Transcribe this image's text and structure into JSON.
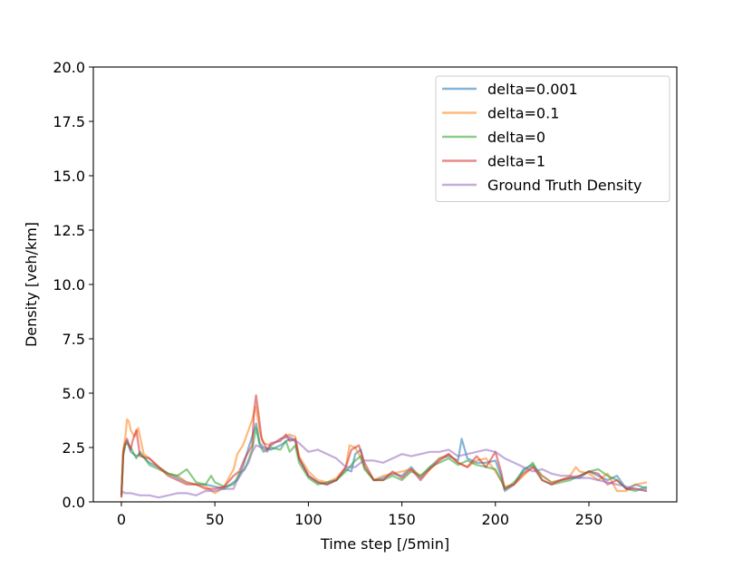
{
  "chart_data": {
    "type": "line",
    "title": "",
    "xlabel": "Time step [/5min]",
    "ylabel": "Density [veh/km]",
    "xlim": [
      -15,
      297
    ],
    "ylim": [
      0,
      20
    ],
    "xticks": [
      0,
      50,
      100,
      150,
      200,
      250
    ],
    "xtick_labels": [
      "0",
      "50",
      "100",
      "150",
      "200",
      "250"
    ],
    "yticks": [
      0,
      2.5,
      5,
      7.5,
      10,
      12.5,
      15,
      17.5,
      20
    ],
    "ytick_labels": [
      "0.0",
      "2.5",
      "5.0",
      "7.5",
      "10.0",
      "12.5",
      "15.0",
      "17.5",
      "20.0"
    ],
    "grid": false,
    "legend_position": "top-right",
    "series": [
      {
        "name": "delta=0.001",
        "color": "#1f77b4",
        "x": [
          0,
          1,
          2,
          3,
          5,
          8,
          10,
          15,
          20,
          25,
          30,
          35,
          40,
          45,
          50,
          55,
          60,
          62,
          65,
          68,
          70,
          72,
          74,
          76,
          80,
          85,
          90,
          93,
          95,
          100,
          105,
          110,
          115,
          120,
          123,
          125,
          128,
          130,
          135,
          140,
          145,
          150,
          155,
          160,
          165,
          170,
          175,
          180,
          182,
          185,
          190,
          195,
          200,
          203,
          205,
          210,
          215,
          220,
          225,
          230,
          235,
          240,
          245,
          250,
          255,
          260,
          265,
          270,
          275,
          281
        ],
        "y": [
          0.3,
          2.2,
          2.6,
          2.8,
          2.3,
          2.1,
          2.2,
          1.8,
          1.6,
          1.3,
          1.1,
          0.9,
          0.8,
          0.8,
          0.7,
          0.6,
          0.9,
          1.0,
          1.6,
          2.5,
          3.0,
          3.6,
          2.7,
          2.5,
          2.4,
          2.6,
          2.9,
          2.8,
          2.0,
          1.2,
          0.9,
          0.8,
          1.0,
          1.5,
          1.4,
          2.2,
          2.4,
          1.6,
          1.0,
          1.1,
          1.3,
          1.2,
          1.6,
          1.1,
          1.6,
          2.0,
          2.1,
          1.9,
          2.9,
          2.0,
          1.8,
          1.8,
          1.9,
          1.2,
          0.5,
          0.8,
          1.5,
          1.7,
          1.2,
          0.9,
          1.0,
          1.1,
          1.1,
          1.4,
          1.2,
          1.0,
          1.2,
          0.6,
          0.8,
          0.6
        ]
      },
      {
        "name": "delta=0.1",
        "color": "#ff7f0e",
        "x": [
          0,
          1,
          2,
          3,
          4,
          5,
          7,
          9,
          12,
          15,
          20,
          25,
          30,
          35,
          40,
          45,
          50,
          55,
          58,
          60,
          62,
          65,
          68,
          70,
          72,
          74,
          76,
          80,
          85,
          90,
          93,
          95,
          100,
          105,
          110,
          115,
          120,
          122,
          125,
          127,
          130,
          135,
          140,
          145,
          150,
          155,
          160,
          165,
          170,
          175,
          180,
          185,
          190,
          195,
          200,
          205,
          210,
          215,
          220,
          225,
          230,
          235,
          240,
          243,
          245,
          250,
          255,
          260,
          265,
          270,
          275,
          281
        ],
        "y": [
          0.2,
          2.4,
          2.9,
          3.8,
          3.7,
          3.3,
          3.0,
          3.4,
          2.2,
          2.0,
          1.6,
          1.3,
          1.2,
          0.9,
          0.8,
          0.7,
          0.4,
          0.7,
          1.2,
          1.5,
          2.2,
          2.6,
          3.3,
          3.8,
          4.4,
          3.2,
          2.7,
          2.6,
          2.9,
          3.1,
          3.0,
          2.1,
          1.4,
          1.0,
          0.9,
          1.1,
          1.6,
          2.6,
          2.5,
          2.2,
          1.6,
          1.0,
          1.2,
          1.3,
          1.4,
          1.5,
          1.2,
          1.5,
          2.0,
          2.2,
          1.8,
          1.6,
          1.9,
          2.0,
          1.4,
          0.7,
          0.8,
          1.2,
          1.6,
          1.2,
          0.9,
          1.0,
          1.2,
          1.6,
          1.4,
          1.3,
          1.0,
          1.3,
          0.5,
          0.5,
          0.8,
          0.9
        ]
      },
      {
        "name": "delta=0",
        "color": "#2ca02c",
        "x": [
          0,
          1,
          2,
          3,
          5,
          8,
          10,
          15,
          20,
          25,
          30,
          35,
          40,
          45,
          48,
          50,
          55,
          60,
          63,
          66,
          70,
          72,
          74,
          76,
          80,
          85,
          88,
          90,
          93,
          95,
          100,
          105,
          110,
          115,
          120,
          125,
          128,
          130,
          135,
          140,
          145,
          150,
          155,
          160,
          165,
          170,
          175,
          180,
          185,
          190,
          195,
          200,
          203,
          205,
          210,
          215,
          220,
          225,
          230,
          235,
          240,
          245,
          250,
          255,
          260,
          265,
          270,
          275,
          281
        ],
        "y": [
          0.3,
          2.1,
          2.6,
          2.7,
          2.5,
          2.0,
          2.3,
          1.7,
          1.5,
          1.3,
          1.2,
          1.5,
          0.9,
          0.8,
          1.2,
          0.9,
          0.7,
          0.8,
          1.3,
          1.5,
          2.4,
          3.4,
          2.6,
          2.3,
          2.5,
          2.4,
          2.8,
          2.3,
          2.6,
          1.8,
          1.1,
          0.8,
          0.9,
          1.0,
          1.4,
          1.9,
          2.1,
          1.5,
          1.0,
          1.0,
          1.2,
          1.0,
          1.4,
          1.2,
          1.6,
          1.8,
          2.0,
          1.7,
          1.9,
          1.7,
          1.6,
          1.5,
          1.0,
          0.6,
          0.9,
          1.4,
          1.8,
          1.0,
          0.8,
          0.9,
          1.0,
          1.2,
          1.4,
          1.5,
          1.2,
          1.0,
          0.6,
          0.5,
          0.7
        ]
      },
      {
        "name": "delta=1",
        "color": "#d62728",
        "x": [
          0,
          1,
          2,
          3,
          5,
          6,
          8,
          10,
          15,
          20,
          25,
          30,
          35,
          40,
          45,
          50,
          55,
          60,
          63,
          66,
          70,
          71,
          72,
          73,
          75,
          78,
          80,
          85,
          88,
          90,
          93,
          95,
          100,
          105,
          110,
          115,
          120,
          123,
          125,
          127,
          130,
          135,
          140,
          145,
          150,
          155,
          160,
          165,
          170,
          175,
          180,
          185,
          190,
          195,
          200,
          203,
          205,
          210,
          215,
          220,
          225,
          230,
          235,
          240,
          245,
          250,
          255,
          260,
          265,
          270,
          275,
          281
        ],
        "y": [
          0.2,
          2.3,
          2.7,
          2.9,
          2.4,
          2.8,
          3.3,
          2.1,
          2.0,
          1.6,
          1.2,
          1.0,
          0.8,
          0.8,
          0.6,
          0.6,
          0.7,
          1.2,
          1.4,
          2.0,
          2.6,
          4.2,
          4.9,
          4.3,
          2.9,
          2.4,
          2.7,
          2.8,
          3.1,
          2.8,
          2.9,
          2.0,
          1.2,
          0.9,
          0.8,
          1.0,
          1.6,
          2.4,
          2.5,
          2.6,
          1.8,
          1.0,
          1.0,
          1.4,
          1.1,
          1.5,
          1.0,
          1.5,
          1.9,
          2.2,
          1.8,
          1.6,
          2.1,
          1.6,
          2.3,
          1.4,
          0.6,
          0.8,
          1.3,
          1.6,
          1.0,
          0.8,
          1.0,
          1.1,
          1.2,
          1.4,
          1.3,
          0.8,
          1.0,
          0.6,
          0.6,
          0.5
        ]
      },
      {
        "name": "Ground Truth Density",
        "color": "#9467bd",
        "x": [
          0,
          2,
          5,
          10,
          15,
          20,
          25,
          30,
          35,
          40,
          45,
          50,
          55,
          60,
          62,
          65,
          68,
          70,
          72,
          75,
          78,
          80,
          85,
          90,
          95,
          100,
          105,
          110,
          115,
          120,
          125,
          128,
          130,
          135,
          140,
          145,
          150,
          155,
          160,
          165,
          170,
          175,
          180,
          185,
          190,
          195,
          200,
          205,
          210,
          215,
          220,
          225,
          230,
          235,
          240,
          245,
          250,
          255,
          260,
          265,
          270,
          275,
          281
        ],
        "y": [
          0.5,
          0.4,
          0.4,
          0.3,
          0.3,
          0.2,
          0.3,
          0.4,
          0.4,
          0.3,
          0.5,
          0.5,
          0.6,
          0.6,
          1.0,
          1.4,
          1.8,
          2.3,
          2.6,
          2.5,
          2.3,
          2.6,
          2.9,
          3.0,
          2.7,
          2.3,
          2.4,
          2.2,
          2.0,
          1.6,
          1.6,
          1.8,
          1.9,
          1.9,
          1.8,
          2.0,
          2.2,
          2.1,
          2.2,
          2.3,
          2.3,
          2.4,
          2.1,
          2.2,
          2.3,
          2.4,
          2.3,
          2.0,
          1.8,
          1.6,
          1.4,
          1.5,
          1.3,
          1.2,
          1.2,
          1.1,
          1.1,
          1.0,
          0.9,
          0.8,
          0.7,
          0.6,
          0.5
        ]
      }
    ]
  }
}
